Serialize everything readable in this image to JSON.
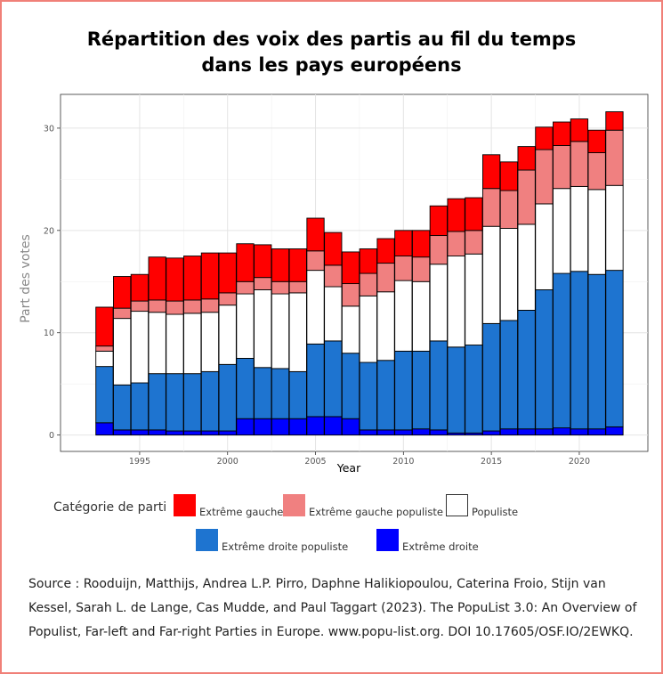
{
  "title": {
    "line1": "Répartition des voix des partis au fil du temps",
    "line2": "dans les pays européens"
  },
  "legend": {
    "title": "Catégorie de parti",
    "items": [
      {
        "label": "Extrême gauche",
        "color": "#ff0000"
      },
      {
        "label": "Extrême gauche populiste",
        "color": "#f08080"
      },
      {
        "label": "Populiste",
        "color": "#ffffff"
      },
      {
        "label": "Extrême droite populiste",
        "color": "#1e74d0"
      },
      {
        "label": "Extrême droite",
        "color": "#0000ff"
      }
    ]
  },
  "source": "Source : Rooduijn, Matthijs, Andrea L.P. Pirro, Daphne Halikiopoulou, Caterina Froio, Stijn van Kessel, Sarah L. de Lange, Cas Mudde, and Paul Taggart (2023). The PopuList 3.0: An Overview of Populist, Far-left and Far-right Parties in Europe. www.popu-list.org. DOI 10.17605/OSF.IO/2EWKQ.",
  "chart_data": {
    "type": "bar",
    "stacked": true,
    "xlabel": "Year",
    "ylabel": "Part des votes",
    "xlim": [
      1990.5,
      2023.9
    ],
    "ylim": [
      -1.6,
      33.3
    ],
    "xticks": [
      1995,
      2000,
      2005,
      2010,
      2015,
      2020
    ],
    "yticks": [
      0,
      10,
      20,
      30
    ],
    "grid": true,
    "legend_position": "bottom",
    "categories": [
      1993,
      1994,
      1995,
      1996,
      1997,
      1998,
      1999,
      2000,
      2001,
      2002,
      2003,
      2004,
      2005,
      2006,
      2007,
      2008,
      2009,
      2010,
      2011,
      2012,
      2013,
      2014,
      2015,
      2016,
      2017,
      2018,
      2019,
      2020,
      2021,
      2022
    ],
    "series": [
      {
        "name": "Extrême droite",
        "color": "#0000ff",
        "values": [
          1.2,
          0.5,
          0.5,
          0.5,
          0.4,
          0.4,
          0.4,
          0.4,
          1.6,
          1.6,
          1.6,
          1.6,
          1.8,
          1.8,
          1.6,
          0.5,
          0.5,
          0.5,
          0.6,
          0.5,
          0.2,
          0.2,
          0.4,
          0.6,
          0.6,
          0.6,
          0.7,
          0.6,
          0.6,
          0.8
        ]
      },
      {
        "name": "Extrême droite populiste",
        "color": "#1e74d0",
        "values": [
          5.5,
          4.4,
          4.6,
          5.5,
          5.6,
          5.6,
          5.8,
          6.5,
          5.9,
          5.0,
          4.9,
          4.6,
          7.1,
          7.4,
          6.4,
          6.6,
          6.8,
          7.7,
          7.6,
          8.7,
          8.4,
          8.6,
          10.5,
          10.6,
          11.6,
          13.6,
          15.1,
          15.4,
          15.1,
          15.3
        ]
      },
      {
        "name": "Populiste",
        "color": "#ffffff",
        "values": [
          1.5,
          6.5,
          7.0,
          6.0,
          5.8,
          5.9,
          5.8,
          5.8,
          6.3,
          7.6,
          7.3,
          7.7,
          7.2,
          5.3,
          4.6,
          6.5,
          6.7,
          6.9,
          6.8,
          7.5,
          8.9,
          8.9,
          9.5,
          9.0,
          8.4,
          8.4,
          8.3,
          8.3,
          8.3,
          8.3
        ]
      },
      {
        "name": "Extrême gauche populiste",
        "color": "#f08080",
        "values": [
          0.5,
          1.0,
          1.0,
          1.2,
          1.3,
          1.3,
          1.3,
          1.2,
          1.2,
          1.2,
          1.2,
          1.1,
          1.9,
          2.1,
          2.2,
          2.2,
          2.8,
          2.4,
          2.4,
          2.8,
          2.4,
          2.3,
          3.7,
          3.7,
          5.3,
          5.3,
          4.2,
          4.4,
          3.6,
          5.4
        ]
      },
      {
        "name": "Extrême gauche",
        "color": "#ff0000",
        "values": [
          3.8,
          3.1,
          2.6,
          4.2,
          4.2,
          4.3,
          4.5,
          3.9,
          3.7,
          3.2,
          3.2,
          3.2,
          3.2,
          3.2,
          3.1,
          2.4,
          2.4,
          2.5,
          2.6,
          2.9,
          3.2,
          3.2,
          3.3,
          2.8,
          2.3,
          2.2,
          2.3,
          2.2,
          2.2,
          1.8
        ]
      }
    ]
  }
}
